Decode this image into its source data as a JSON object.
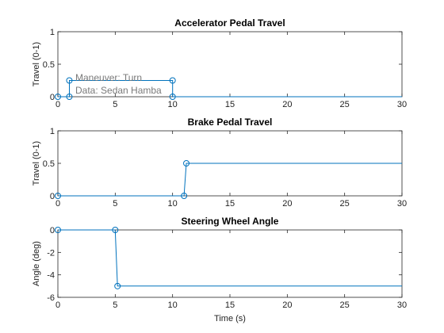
{
  "chart_data": [
    {
      "type": "line",
      "title": "Accelerator Pedal Travel",
      "xlabel": "",
      "ylabel": "Travel (0-1)",
      "xlim": [
        0,
        30
      ],
      "ylim": [
        0,
        1
      ],
      "xticks": [
        "0",
        "5",
        "10",
        "15",
        "20",
        "25",
        "30"
      ],
      "yticks": [
        "0",
        "0.5",
        "1"
      ],
      "grid": false,
      "series": [
        {
          "color": "#0072BD",
          "x": [
            0,
            1,
            1,
            10,
            10,
            30
          ],
          "y": [
            0,
            0,
            0.25,
            0.25,
            0,
            0
          ],
          "markers": [
            0,
            1,
            2,
            3,
            4
          ]
        }
      ],
      "annotations": [
        "Maneuver: Turn",
        "Data: Sedan Hamba"
      ]
    },
    {
      "type": "line",
      "title": "Brake Pedal Travel",
      "xlabel": "",
      "ylabel": "Travel (0-1)",
      "xlim": [
        0,
        30
      ],
      "ylim": [
        0,
        1
      ],
      "xticks": [
        "0",
        "5",
        "10",
        "15",
        "20",
        "25",
        "30"
      ],
      "yticks": [
        "0",
        "0.5",
        "1"
      ],
      "grid": false,
      "series": [
        {
          "color": "#0072BD",
          "x": [
            0,
            11,
            11.2,
            30
          ],
          "y": [
            0,
            0,
            0.5,
            0.5
          ],
          "markers": [
            0,
            1,
            2
          ]
        }
      ],
      "annotations": []
    },
    {
      "type": "line",
      "title": "Steering Wheel Angle",
      "xlabel": "Time (s)",
      "ylabel": "Angle (deg)",
      "xlim": [
        0,
        30
      ],
      "ylim": [
        -6,
        0
      ],
      "xticks": [
        "0",
        "5",
        "10",
        "15",
        "20",
        "25",
        "30"
      ],
      "yticks": [
        "-6",
        "-4",
        "-2",
        "0"
      ],
      "grid": false,
      "series": [
        {
          "color": "#0072BD",
          "x": [
            0,
            5,
            5.2,
            30
          ],
          "y": [
            0,
            0,
            -5,
            -5
          ],
          "markers": [
            0,
            1,
            2
          ]
        }
      ],
      "annotations": []
    }
  ]
}
